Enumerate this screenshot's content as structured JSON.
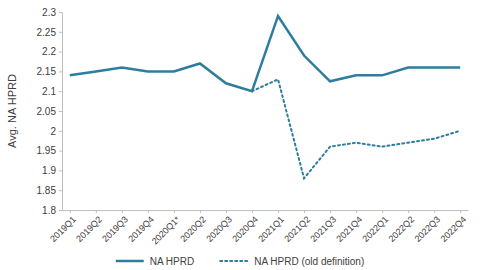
{
  "chart_data": {
    "type": "line",
    "y_label": "Avg. NA HPRD",
    "categories": [
      "2019Q1",
      "2019Q2",
      "2019Q3",
      "2019Q4",
      "2020Q1*",
      "2020Q2",
      "2020Q3",
      "2020Q4",
      "2021Q1",
      "2021Q2",
      "2021Q3",
      "2021Q4",
      "2022Q1",
      "2022Q2",
      "2022Q3",
      "2022Q4"
    ],
    "series": [
      {
        "name": "NA HPRD",
        "color": "#2e7d9e",
        "line_style": "solid",
        "values": [
          2.14,
          2.15,
          2.16,
          2.15,
          2.15,
          2.17,
          2.12,
          2.1,
          2.29,
          2.19,
          2.125,
          2.14,
          2.14,
          2.16,
          2.16,
          2.16
        ]
      },
      {
        "name": "NA HPRD (old definition)",
        "color": "#2e7d9e",
        "line_style": "dotted",
        "values": [
          null,
          null,
          null,
          null,
          null,
          null,
          null,
          2.1,
          2.13,
          1.88,
          1.96,
          1.97,
          1.96,
          1.97,
          1.98,
          2.0
        ]
      }
    ],
    "ylim": [
      1.8,
      2.3
    ],
    "yticks": [
      1.8,
      1.85,
      1.9,
      1.95,
      2,
      2.05,
      2.1,
      2.15,
      2.2,
      2.25,
      2.3
    ],
    "grid": false,
    "legend": "bottom"
  }
}
